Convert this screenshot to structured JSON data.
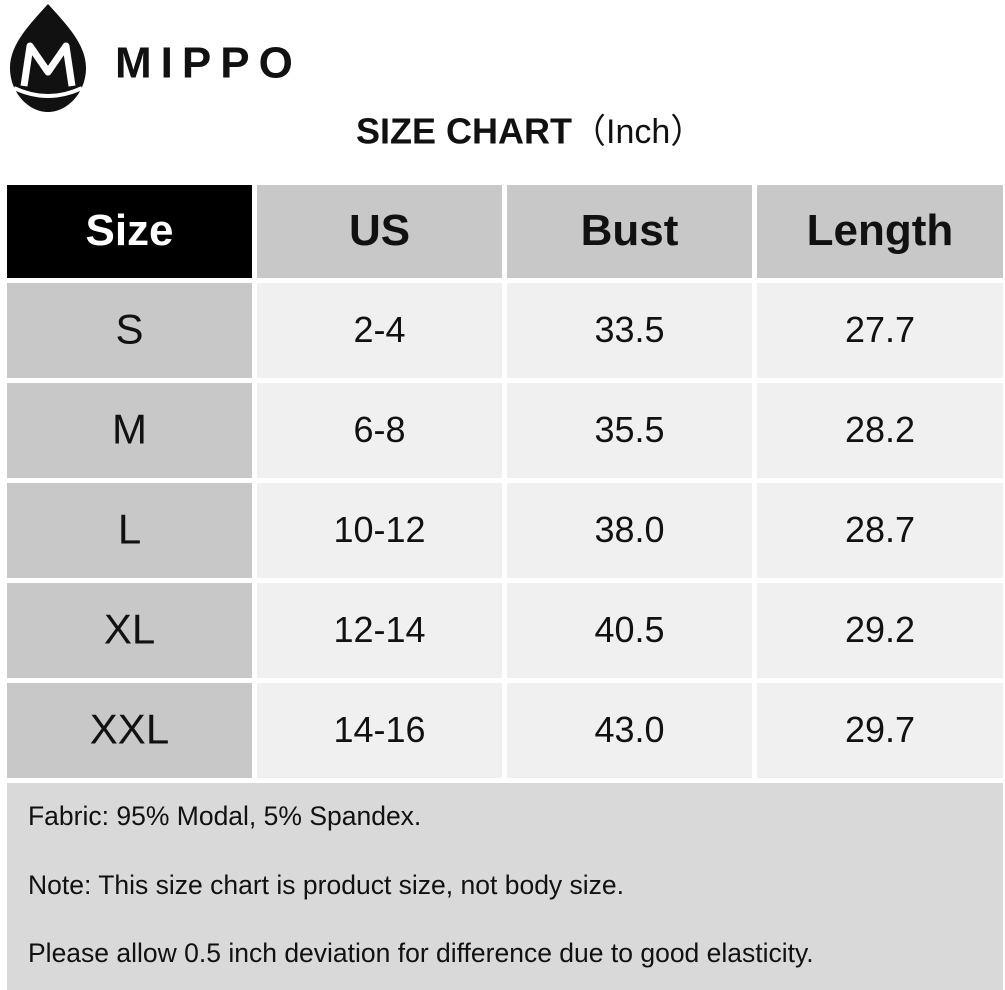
{
  "header": {
    "brand": "MIPPO",
    "title": "SIZE CHART",
    "unit": "（Inch）"
  },
  "table": {
    "columns": [
      "Size",
      "US",
      "Bust",
      "Length"
    ],
    "rows": [
      [
        "S",
        "2-4",
        "33.5",
        "27.7"
      ],
      [
        "M",
        "6-8",
        "35.5",
        "28.2"
      ],
      [
        "L",
        "10-12",
        "38.0",
        "28.7"
      ],
      [
        "XL",
        "12-14",
        "40.5",
        "29.2"
      ],
      [
        "XXL",
        "14-16",
        "43.0",
        "29.7"
      ]
    ]
  },
  "notes": [
    "Fabric: 95% Modal, 5% Spandex.",
    "Note: This size chart is product size, not body size.",
    "Please allow 0.5 inch deviation for difference due to good elasticity."
  ]
}
